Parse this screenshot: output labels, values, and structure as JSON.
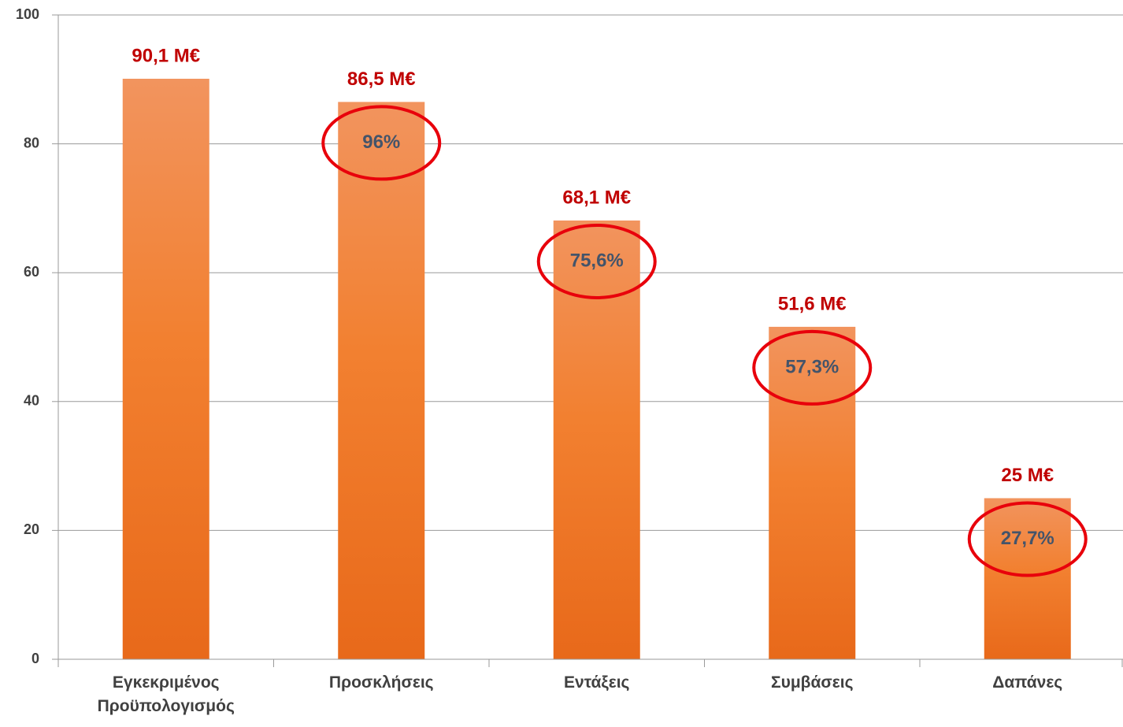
{
  "chart_data": {
    "type": "bar",
    "categories": [
      "Εγκεκριμένος Προϋπολογισμός",
      "Προσκλήσεις",
      "Εντάξεις",
      "Συμβάσεις",
      "Δαπάνες"
    ],
    "values": [
      90.1,
      86.5,
      68.1,
      51.6,
      25
    ],
    "value_labels": [
      "90,1 M€",
      "86,5 M€",
      "68,1 M€",
      "51,6 M€",
      "25 M€"
    ],
    "color": "#f07a2a",
    "ylim": [
      0,
      100
    ],
    "yticks": [
      0,
      20,
      40,
      60,
      80,
      100
    ],
    "grid": true,
    "annotations": [
      {
        "category": "Προσκλήσεις",
        "text": "96%"
      },
      {
        "category": "Εντάξεις",
        "text": "75,6%"
      },
      {
        "category": "Συμβάσεις",
        "text": "57,3%"
      },
      {
        "category": "Δαπάνες",
        "text": "27,7%"
      }
    ]
  }
}
